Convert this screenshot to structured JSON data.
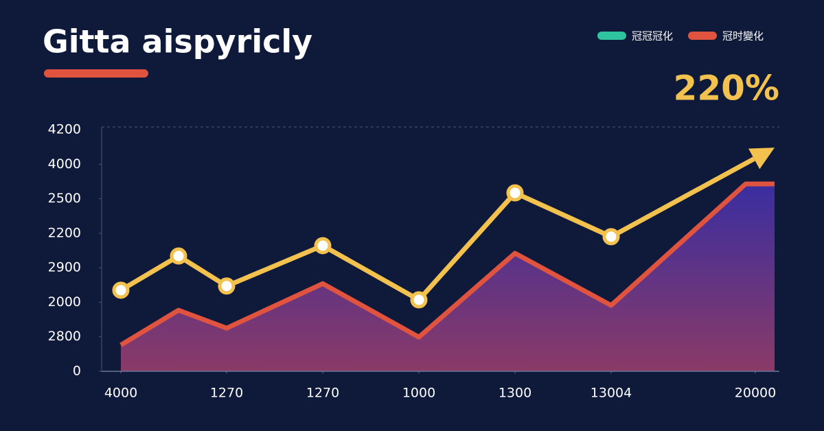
{
  "chart_data": {
    "type": "line",
    "title": "Gitta aispyricly",
    "annotation": "220%",
    "legend": [
      {
        "label": "冠冠冠化",
        "color": "#2ec4a0"
      },
      {
        "label": "冠时變化",
        "color": "#e0533f"
      }
    ],
    "xlim": [
      -0.3,
      6.7
    ],
    "xticks": [
      {
        "value": -0.1,
        "label": "4000"
      },
      {
        "value": 1,
        "label": "1270"
      },
      {
        "value": 2,
        "label": "1270"
      },
      {
        "value": 3,
        "label": "1000"
      },
      {
        "value": 4,
        "label": "1300"
      },
      {
        "value": 5,
        "label": "13004"
      },
      {
        "value": 6.5,
        "label": "20000"
      }
    ],
    "ylim": [
      0,
      7
    ],
    "yticks": [
      0,
      {
        "value": 1,
        "label": "2800"
      },
      {
        "value": 2,
        "label": "2000"
      },
      {
        "value": 3,
        "label": "2900"
      },
      {
        "value": 4,
        "label": "2200"
      },
      {
        "value": 5,
        "label": "2500"
      },
      {
        "value": 6,
        "label": "4000"
      },
      {
        "value": 7,
        "label": "4200"
      }
    ],
    "series": [
      {
        "color": "#e0533f",
        "fill": true,
        "x": [
          -0.1,
          0.5,
          1,
          2,
          3,
          4,
          5,
          6.4,
          6.7
        ],
        "values": [
          0.76,
          1.77,
          1.25,
          2.54,
          0.99,
          3.42,
          1.91,
          5.43,
          5.43
        ]
      },
      {
        "color": "#f2c14e",
        "markers": true,
        "arrow": true,
        "x": [
          -0.1,
          0.5,
          1,
          2,
          3,
          4,
          5,
          6.7
        ],
        "values": [
          2.35,
          3.34,
          2.47,
          3.64,
          2.07,
          5.17,
          3.9,
          6.48
        ]
      }
    ]
  }
}
